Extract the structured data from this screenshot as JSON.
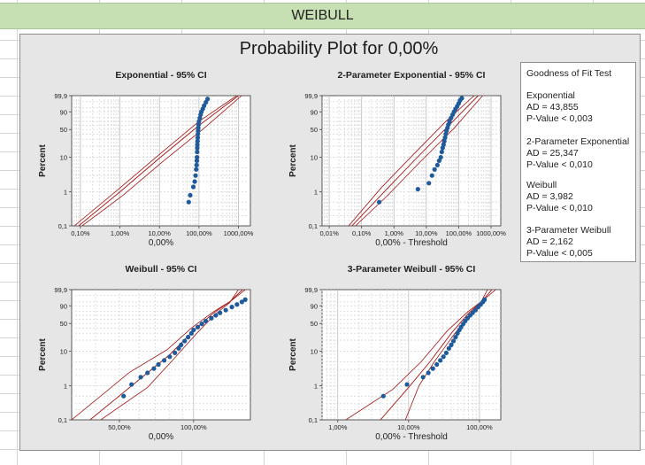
{
  "sheet": {
    "header": "WEIBULL"
  },
  "figure": {
    "title": "Probability Plot for 0,00%"
  },
  "gof": {
    "title": "Goodness of Fit Test",
    "items": [
      {
        "name": "Exponential",
        "ad": "AD = 43,855",
        "p": "P-Value < 0,003"
      },
      {
        "name": "2-Parameter Exponential",
        "ad": "AD = 25,347",
        "p": "P-Value < 0,010"
      },
      {
        "name": "Weibull",
        "ad": "AD = 3,982",
        "p": "P-Value < 0,010"
      },
      {
        "name": "3-Parameter Weibull",
        "ad": "AD = 2,162",
        "p": "P-Value < 0,005"
      }
    ]
  },
  "colors": {
    "fit_line": "#a31515",
    "point": "#1f5a9a",
    "plot_bg": "#ffffff",
    "figure_bg": "#e6e6e6"
  },
  "chart_data": [
    {
      "type": "scatter",
      "title": "Exponential - 95% CI",
      "xlabel": "0,00%",
      "ylabel": "Percent",
      "x_scale": "log",
      "xlim": [
        0.06,
        2000
      ],
      "x_ticks": [
        "0,10%",
        "1,00%",
        "10,00%",
        "100,00%",
        "1000,00%"
      ],
      "x_tick_values": [
        0.1,
        1,
        10,
        100,
        1000
      ],
      "y_ticks": [
        "0,1",
        "1",
        "10",
        "50",
        "90",
        "99,9"
      ],
      "y_tick_values": [
        0.1,
        1,
        10,
        50,
        90,
        99.9
      ],
      "ylim": [
        0.1,
        99.9
      ],
      "fit": {
        "x": [
          0.09,
          1,
          10,
          100,
          1000
        ],
        "y": [
          0.1,
          1.0,
          9.5,
          60,
          99.9
        ]
      },
      "ci_lower": {
        "x": [
          0.07,
          1,
          10,
          100,
          900
        ],
        "y": [
          0.1,
          1.3,
          12,
          70,
          99.9
        ]
      },
      "ci_upper": {
        "x": [
          0.11,
          1.2,
          12,
          130,
          1200
        ],
        "y": [
          0.1,
          0.8,
          7.5,
          52,
          99.9
        ]
      },
      "points": {
        "x": [
          55,
          60,
          72,
          78,
          82,
          85,
          87,
          88,
          89,
          90,
          90.5,
          91,
          92,
          93,
          94,
          95,
          96,
          98,
          100,
          105,
          110,
          115,
          125,
          135,
          150,
          165
        ],
        "y": [
          0.5,
          0.8,
          1.4,
          2,
          3,
          4.5,
          6,
          8,
          10,
          14,
          18,
          22,
          27,
          33,
          40,
          47,
          54,
          62,
          70,
          78,
          85,
          90,
          94,
          97,
          98.8,
          99.6
        ]
      }
    },
    {
      "type": "scatter",
      "title": "2-Parameter Exponential - 95% CI",
      "xlabel": "0,00% - Threshold",
      "ylabel": "Percent",
      "x_scale": "log",
      "xlim": [
        0.006,
        2000
      ],
      "x_ticks": [
        "0,01%",
        "0,10%",
        "1,00%",
        "10,00%",
        "100,00%",
        "1000,00%"
      ],
      "x_tick_values": [
        0.01,
        0.1,
        1,
        10,
        100,
        1000
      ],
      "y_ticks": [
        "0,1",
        "1",
        "10",
        "50",
        "90",
        "99,9"
      ],
      "y_tick_values": [
        0.1,
        1,
        10,
        50,
        90,
        99.9
      ],
      "ylim": [
        0.1,
        99.9
      ],
      "fit": {
        "x": [
          0.05,
          0.5,
          5,
          50,
          400
        ],
        "y": [
          0.1,
          1.0,
          9.5,
          60,
          99.9
        ]
      },
      "ci_lower": {
        "x": [
          0.04,
          0.4,
          4,
          40,
          300
        ],
        "y": [
          0.1,
          1.3,
          12,
          70,
          99.9
        ]
      },
      "ci_upper": {
        "x": [
          0.065,
          0.65,
          6.5,
          70,
          550
        ],
        "y": [
          0.1,
          0.8,
          7.5,
          52,
          99.9
        ]
      },
      "points": {
        "x": [
          0.35,
          5.5,
          12,
          15,
          18,
          22,
          25,
          28,
          30,
          32,
          34,
          36,
          38,
          40,
          42,
          45,
          48,
          52,
          58,
          65,
          72,
          80,
          90,
          100,
          110,
          125
        ],
        "y": [
          0.5,
          1.2,
          1.8,
          3,
          4.5,
          6,
          8,
          10,
          14,
          18,
          22,
          27,
          33,
          40,
          47,
          54,
          62,
          70,
          78,
          85,
          90,
          94,
          96.5,
          98.3,
          99.3,
          99.7
        ]
      }
    },
    {
      "type": "scatter",
      "title": "Weibull - 95% CI",
      "xlabel": "0,00%",
      "ylabel": "Percent",
      "x_scale": "log",
      "xlim": [
        32,
        170
      ],
      "x_ticks": [
        "50,00%",
        "100,00%"
      ],
      "x_tick_values": [
        50,
        100
      ],
      "y_ticks": [
        "0,1",
        "1",
        "10",
        "50",
        "90",
        "99,9"
      ],
      "y_tick_values": [
        0.1,
        1,
        10,
        50,
        90,
        99.9
      ],
      "ylim": [
        0.1,
        99.9
      ],
      "fit": {
        "x": [
          38,
          60,
          80,
          100,
          120,
          140,
          158
        ],
        "y": [
          0.1,
          1.5,
          8,
          35,
          75,
          95,
          99.9
        ]
      },
      "ci_lower": {
        "x": [
          32,
          55,
          78,
          98,
          120,
          142,
          162
        ],
        "y": [
          0.1,
          2.5,
          11,
          40,
          78,
          96,
          99.9
        ]
      },
      "ci_upper": {
        "x": [
          42,
          65,
          83,
          103,
          122,
          140,
          152
        ],
        "y": [
          0.1,
          0.9,
          6,
          30,
          72,
          94,
          99.9
        ]
      },
      "points": {
        "x": [
          52,
          56,
          61,
          65,
          69,
          72,
          76,
          80,
          84,
          87,
          89,
          92,
          95,
          98,
          100,
          104,
          108,
          112,
          118,
          123,
          128,
          135,
          143,
          150,
          157,
          162
        ],
        "y": [
          0.5,
          1.1,
          1.8,
          2.4,
          3.2,
          4.2,
          5.5,
          7,
          9,
          12,
          15,
          19,
          24,
          30,
          36,
          42,
          49,
          56,
          63,
          70,
          76,
          82,
          88,
          92,
          95,
          97
        ]
      }
    },
    {
      "type": "scatter",
      "title": "3-Parameter Weibull - 95% CI",
      "xlabel": "0,00% - Threshold",
      "ylabel": "Percent",
      "x_scale": "log",
      "xlim": [
        0.6,
        200
      ],
      "x_ticks": [
        "1,00%",
        "10,00%",
        "100,00%"
      ],
      "x_tick_values": [
        1,
        10,
        100
      ],
      "y_ticks": [
        "0,1",
        "1",
        "10",
        "50",
        "90",
        "99,9"
      ],
      "y_tick_values": [
        0.1,
        1,
        10,
        50,
        90,
        99.9
      ],
      "ylim": [
        0.1,
        99.9
      ],
      "fit": {
        "x": [
          4,
          10,
          20,
          40,
          70,
          110,
          150
        ],
        "y": [
          0.1,
          0.9,
          5,
          30,
          75,
          96,
          99.9
        ]
      },
      "ci_lower": {
        "x": [
          1.3,
          6,
          15,
          35,
          68,
          115,
          170
        ],
        "y": [
          0.1,
          0.8,
          5,
          34,
          78,
          97,
          99.9
        ]
      },
      "ci_upper": {
        "x": [
          9,
          14,
          23,
          43,
          72,
          105,
          130
        ],
        "y": [
          0.1,
          1.0,
          5,
          27,
          72,
          95,
          99.9
        ]
      },
      "points": {
        "x": [
          4.4,
          9.5,
          16,
          19,
          22,
          25,
          28,
          31,
          34,
          37,
          40,
          43,
          46,
          49,
          52,
          55,
          59,
          63,
          68,
          74,
          80,
          88,
          96,
          104,
          112,
          118
        ],
        "y": [
          0.5,
          1.1,
          1.8,
          2.4,
          3.2,
          4.2,
          5.5,
          7,
          9,
          12,
          15,
          19,
          24,
          30,
          36,
          42,
          49,
          56,
          63,
          70,
          76,
          82,
          88,
          92,
          95,
          97
        ]
      }
    }
  ]
}
